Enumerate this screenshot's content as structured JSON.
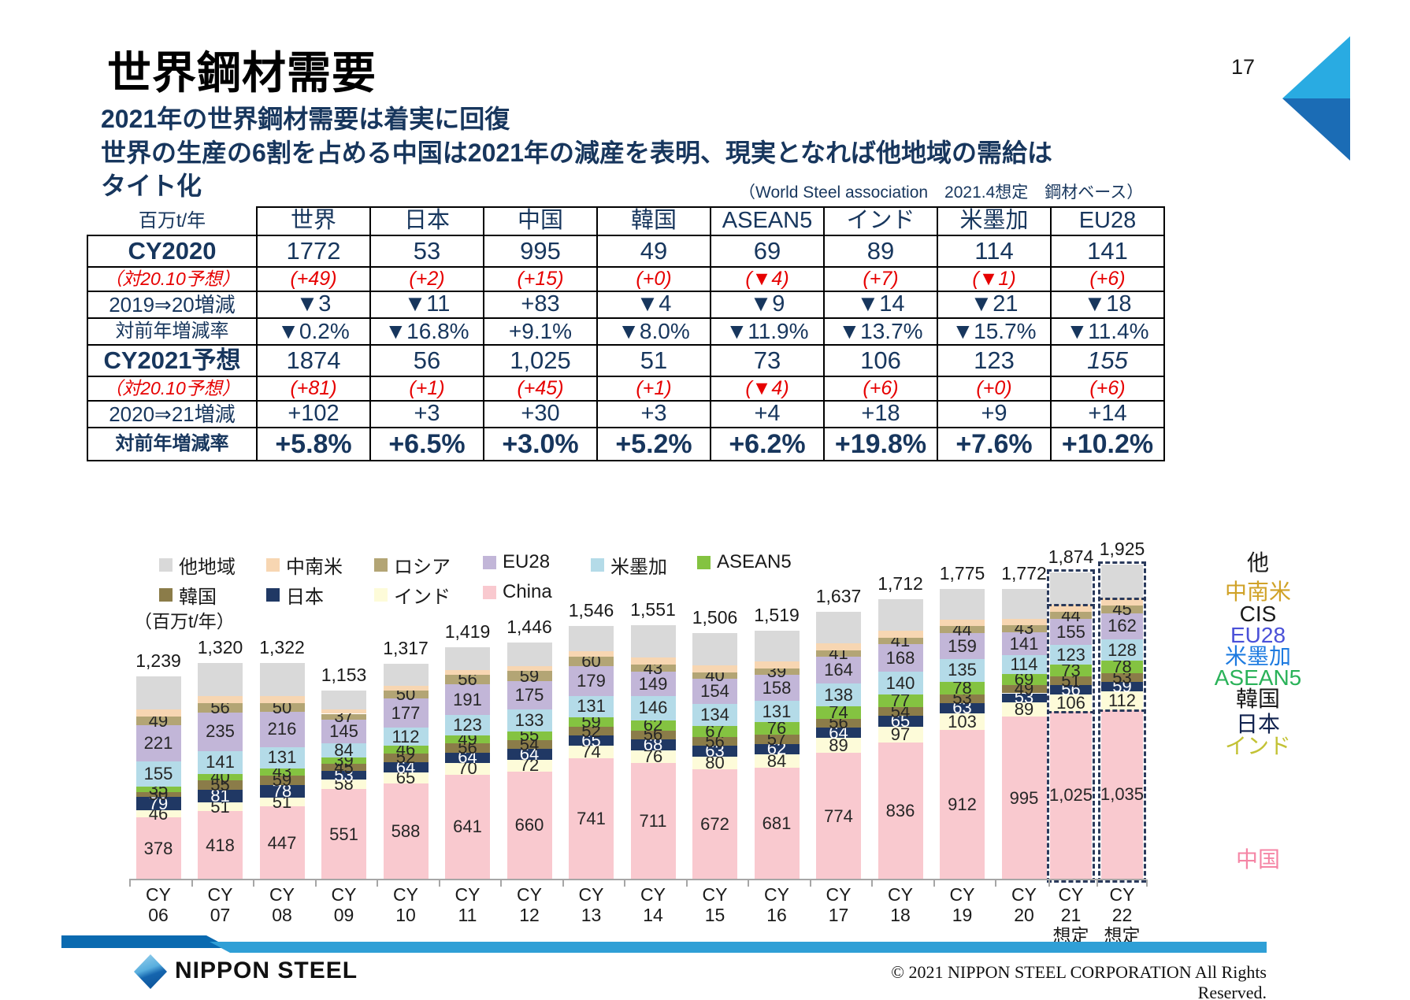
{
  "slide": {
    "title": "世界鋼材需要",
    "page_number": "17",
    "subtitle_line1": "2021年の世界鋼材需要は着実に回復",
    "subtitle_line2": "世界の生産の6割を占める中国は2021年の減産を表明、現実となれば他地域の需給は",
    "subtitle_line3": "タイト化",
    "source_note": "（World Steel association　2021.4想定　鋼材ベース）"
  },
  "table": {
    "unit_label": "百万t/年",
    "columns": [
      "世界",
      "日本",
      "中国",
      "韓国",
      "ASEAN5",
      "インド",
      "米墨加",
      "EU28"
    ],
    "rows": [
      {
        "label": "CY2020",
        "style": "main",
        "values": [
          "1772",
          "53",
          "995",
          "49",
          "69",
          "89",
          "114",
          "141"
        ]
      },
      {
        "label": "（対20.10予想）",
        "style": "red",
        "values": [
          "(+49)",
          "(+2)",
          "(+15)",
          "(+0)",
          "(▼4)",
          "(+7)",
          "(▼1)",
          "(+6)"
        ]
      },
      {
        "label": "2019⇒20増減",
        "style": "chg",
        "values": [
          "▼3",
          "▼11",
          "+83",
          "▼4",
          "▼9",
          "▼14",
          "▼21",
          "▼18"
        ]
      },
      {
        "label": "対前年増減率",
        "style": "rate",
        "values": [
          "▼0.2%",
          "▼16.8%",
          "+9.1%",
          "▼8.0%",
          "▼11.9%",
          "▼13.7%",
          "▼15.7%",
          "▼11.4%"
        ]
      },
      {
        "label": "CY2021予想",
        "style": "main",
        "values": [
          "1874",
          "56",
          "1,025",
          "51",
          "73",
          "106",
          "123",
          "155"
        ]
      },
      {
        "label": "（対20.10予想）",
        "style": "red",
        "values": [
          "(+81)",
          "(+1)",
          "(+45)",
          "(+1)",
          "(▼4)",
          "(+6)",
          "(+0)",
          "(+6)"
        ]
      },
      {
        "label": "2020⇒21増減",
        "style": "chg",
        "values": [
          "+102",
          "+3",
          "+30",
          "+3",
          "+4",
          "+18",
          "+9",
          "+14"
        ]
      },
      {
        "label": "対前年増減率",
        "style": "rate2",
        "values": [
          "+5.8%",
          "+6.5%",
          "+3.0%",
          "+5.2%",
          "+6.2%",
          "+19.8%",
          "+7.6%",
          "+10.2%"
        ]
      }
    ],
    "italic_cells": [
      [
        4,
        7
      ]
    ]
  },
  "chart_data": {
    "type": "bar",
    "stacked": true,
    "unit_label": "（百万t/年）",
    "categories": [
      "CY06",
      "CY07",
      "CY08",
      "CY09",
      "CY10",
      "CY11",
      "CY12",
      "CY13",
      "CY14",
      "CY15",
      "CY16",
      "CY17",
      "CY18",
      "CY19",
      "CY20",
      "CY21想定",
      "CY22想定"
    ],
    "category_lines": [
      [
        "CY",
        "06"
      ],
      [
        "CY",
        "07"
      ],
      [
        "CY",
        "08"
      ],
      [
        "CY",
        "09"
      ],
      [
        "CY",
        "10"
      ],
      [
        "CY",
        "11"
      ],
      [
        "CY",
        "12"
      ],
      [
        "CY",
        "13"
      ],
      [
        "CY",
        "14"
      ],
      [
        "CY",
        "15"
      ],
      [
        "CY",
        "16"
      ],
      [
        "CY",
        "17"
      ],
      [
        "CY",
        "18"
      ],
      [
        "CY",
        "19"
      ],
      [
        "CY",
        "20"
      ],
      [
        "CY",
        "21",
        "想定"
      ],
      [
        "CY",
        "22",
        "想定"
      ]
    ],
    "forecast_from_index": 15,
    "totals": [
      1239,
      1320,
      1322,
      1153,
      1317,
      1419,
      1446,
      1546,
      1551,
      1506,
      1519,
      1637,
      1712,
      1775,
      1772,
      1874,
      1925
    ],
    "series": [
      {
        "name": "China",
        "color": "#f9c9cf",
        "labeled": true,
        "label_color": "#262626",
        "values": [
          378,
          418,
          447,
          551,
          588,
          641,
          660,
          741,
          711,
          672,
          681,
          774,
          836,
          912,
          995,
          1025,
          1035
        ]
      },
      {
        "name": "インド",
        "color": "#fdfbd9",
        "labeled": true,
        "label_color": "#262626",
        "values": [
          46,
          51,
          51,
          58,
          65,
          70,
          72,
          74,
          76,
          80,
          84,
          89,
          97,
          103,
          89,
          106,
          112
        ]
      },
      {
        "name": "日本",
        "color": "#203864",
        "labeled": true,
        "label_color": "#ffffff",
        "values": [
          79,
          81,
          78,
          53,
          64,
          64,
          64,
          65,
          68,
          63,
          62,
          64,
          65,
          63,
          53,
          56,
          59
        ]
      },
      {
        "name": "韓国",
        "color": "#8b7c49",
        "labeled": true,
        "label_color": "#262626",
        "values": [
          30,
          55,
          59,
          45,
          52,
          56,
          54,
          52,
          56,
          56,
          57,
          56,
          54,
          53,
          49,
          51,
          53
        ]
      },
      {
        "name": "ASEAN5",
        "color": "#84c341",
        "labeled": true,
        "label_color": "#262626",
        "values": [
          35,
          40,
          43,
          39,
          46,
          49,
          55,
          59,
          62,
          67,
          76,
          74,
          77,
          78,
          69,
          73,
          78
        ]
      },
      {
        "name": "米墨加",
        "color": "#b4dbe8",
        "labeled": true,
        "label_color": "#262626",
        "values": [
          155,
          141,
          131,
          84,
          112,
          123,
          133,
          131,
          146,
          134,
          131,
          138,
          140,
          135,
          114,
          123,
          128
        ]
      },
      {
        "name": "EU28",
        "color": "#c2b6d8",
        "labeled": true,
        "label_color": "#262626",
        "values": [
          221,
          235,
          216,
          145,
          177,
          191,
          175,
          179,
          149,
          154,
          158,
          164,
          168,
          159,
          141,
          155,
          162
        ]
      },
      {
        "name": "ロシア",
        "color": "#b3a575",
        "labeled": true,
        "label_color": "#262626",
        "values": [
          49,
          56,
          50,
          37,
          50,
          56,
          59,
          60,
          43,
          40,
          39,
          41,
          41,
          44,
          43,
          44,
          45
        ]
      },
      {
        "name": "中南米",
        "color": "#f7d6b2",
        "labeled": false
      },
      {
        "name": "他地域",
        "color": "#d9d9d9",
        "labeled": false
      }
    ],
    "others_combined": [
      246,
      243,
      247,
      141,
      163,
      169,
      174,
      185,
      240,
      240,
      231,
      237,
      234,
      228,
      219,
      241,
      253
    ],
    "legend_row1": [
      {
        "label": "他地域",
        "color": "#d9d9d9"
      },
      {
        "label": "中南米",
        "color": "#f7d6b2"
      },
      {
        "label": "ロシア",
        "color": "#b3a575"
      },
      {
        "label": "EU28",
        "color": "#c2b6d8"
      },
      {
        "label": "米墨加",
        "color": "#b4dbe8"
      },
      {
        "label": "ASEAN5",
        "color": "#84c341"
      }
    ],
    "legend_row2": [
      {
        "label": "韓国",
        "color": "#8b7c49"
      },
      {
        "label": "日本",
        "color": "#203864"
      },
      {
        "label": "インド",
        "color": "#fdfbd9"
      },
      {
        "label": "China",
        "color": "#f9c9cf"
      }
    ]
  },
  "right_labels": [
    {
      "text": "他",
      "color": "#1a1a1a"
    },
    {
      "text": "中南米",
      "color": "#d0a227"
    },
    {
      "text": "CIS",
      "color": "#1a1a1a"
    },
    {
      "text": "EU28",
      "color": "#4a50d8"
    },
    {
      "text": "米墨加",
      "color": "#1e7be0"
    },
    {
      "text": "ASEAN5",
      "color": "#2ab259"
    },
    {
      "text": "韓国",
      "color": "#1a1a1a"
    },
    {
      "text": "日本",
      "color": "#10224e"
    },
    {
      "text": "インド",
      "color": "#c3c235"
    },
    {
      "text": "中国",
      "color": "#f585a5"
    }
  ],
  "footer": {
    "logo_text": "NIPPON STEEL",
    "copyright": "© 2021 NIPPON STEEL CORPORATION All Rights Reserved."
  }
}
